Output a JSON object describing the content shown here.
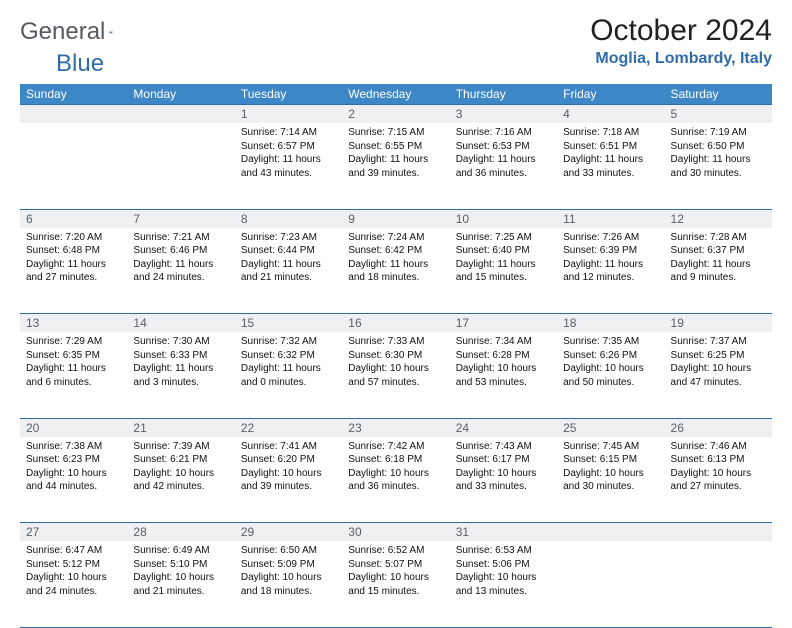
{
  "logo": {
    "text1": "General",
    "text2": "Blue"
  },
  "title": "October 2024",
  "location": "Moglia, Lombardy, Italy",
  "colors": {
    "header_bg": "#3d87c7",
    "header_text": "#ffffff",
    "accent": "#2f6ca8",
    "daynum_bg": "#eef0f2",
    "daynum_text": "#5a5f66",
    "body_text": "#111111",
    "page_bg": "#ffffff"
  },
  "day_headers": [
    "Sunday",
    "Monday",
    "Tuesday",
    "Wednesday",
    "Thursday",
    "Friday",
    "Saturday"
  ],
  "weeks": [
    [
      null,
      null,
      {
        "n": "1",
        "sr": "7:14 AM",
        "ss": "6:57 PM",
        "dl": "11 hours and 43 minutes."
      },
      {
        "n": "2",
        "sr": "7:15 AM",
        "ss": "6:55 PM",
        "dl": "11 hours and 39 minutes."
      },
      {
        "n": "3",
        "sr": "7:16 AM",
        "ss": "6:53 PM",
        "dl": "11 hours and 36 minutes."
      },
      {
        "n": "4",
        "sr": "7:18 AM",
        "ss": "6:51 PM",
        "dl": "11 hours and 33 minutes."
      },
      {
        "n": "5",
        "sr": "7:19 AM",
        "ss": "6:50 PM",
        "dl": "11 hours and 30 minutes."
      }
    ],
    [
      {
        "n": "6",
        "sr": "7:20 AM",
        "ss": "6:48 PM",
        "dl": "11 hours and 27 minutes."
      },
      {
        "n": "7",
        "sr": "7:21 AM",
        "ss": "6:46 PM",
        "dl": "11 hours and 24 minutes."
      },
      {
        "n": "8",
        "sr": "7:23 AM",
        "ss": "6:44 PM",
        "dl": "11 hours and 21 minutes."
      },
      {
        "n": "9",
        "sr": "7:24 AM",
        "ss": "6:42 PM",
        "dl": "11 hours and 18 minutes."
      },
      {
        "n": "10",
        "sr": "7:25 AM",
        "ss": "6:40 PM",
        "dl": "11 hours and 15 minutes."
      },
      {
        "n": "11",
        "sr": "7:26 AM",
        "ss": "6:39 PM",
        "dl": "11 hours and 12 minutes."
      },
      {
        "n": "12",
        "sr": "7:28 AM",
        "ss": "6:37 PM",
        "dl": "11 hours and 9 minutes."
      }
    ],
    [
      {
        "n": "13",
        "sr": "7:29 AM",
        "ss": "6:35 PM",
        "dl": "11 hours and 6 minutes."
      },
      {
        "n": "14",
        "sr": "7:30 AM",
        "ss": "6:33 PM",
        "dl": "11 hours and 3 minutes."
      },
      {
        "n": "15",
        "sr": "7:32 AM",
        "ss": "6:32 PM",
        "dl": "11 hours and 0 minutes."
      },
      {
        "n": "16",
        "sr": "7:33 AM",
        "ss": "6:30 PM",
        "dl": "10 hours and 57 minutes."
      },
      {
        "n": "17",
        "sr": "7:34 AM",
        "ss": "6:28 PM",
        "dl": "10 hours and 53 minutes."
      },
      {
        "n": "18",
        "sr": "7:35 AM",
        "ss": "6:26 PM",
        "dl": "10 hours and 50 minutes."
      },
      {
        "n": "19",
        "sr": "7:37 AM",
        "ss": "6:25 PM",
        "dl": "10 hours and 47 minutes."
      }
    ],
    [
      {
        "n": "20",
        "sr": "7:38 AM",
        "ss": "6:23 PM",
        "dl": "10 hours and 44 minutes."
      },
      {
        "n": "21",
        "sr": "7:39 AM",
        "ss": "6:21 PM",
        "dl": "10 hours and 42 minutes."
      },
      {
        "n": "22",
        "sr": "7:41 AM",
        "ss": "6:20 PM",
        "dl": "10 hours and 39 minutes."
      },
      {
        "n": "23",
        "sr": "7:42 AM",
        "ss": "6:18 PM",
        "dl": "10 hours and 36 minutes."
      },
      {
        "n": "24",
        "sr": "7:43 AM",
        "ss": "6:17 PM",
        "dl": "10 hours and 33 minutes."
      },
      {
        "n": "25",
        "sr": "7:45 AM",
        "ss": "6:15 PM",
        "dl": "10 hours and 30 minutes."
      },
      {
        "n": "26",
        "sr": "7:46 AM",
        "ss": "6:13 PM",
        "dl": "10 hours and 27 minutes."
      }
    ],
    [
      {
        "n": "27",
        "sr": "6:47 AM",
        "ss": "5:12 PM",
        "dl": "10 hours and 24 minutes."
      },
      {
        "n": "28",
        "sr": "6:49 AM",
        "ss": "5:10 PM",
        "dl": "10 hours and 21 minutes."
      },
      {
        "n": "29",
        "sr": "6:50 AM",
        "ss": "5:09 PM",
        "dl": "10 hours and 18 minutes."
      },
      {
        "n": "30",
        "sr": "6:52 AM",
        "ss": "5:07 PM",
        "dl": "10 hours and 15 minutes."
      },
      {
        "n": "31",
        "sr": "6:53 AM",
        "ss": "5:06 PM",
        "dl": "10 hours and 13 minutes."
      },
      null,
      null
    ]
  ],
  "labels": {
    "sunrise": "Sunrise:",
    "sunset": "Sunset:",
    "daylight": "Daylight:"
  }
}
